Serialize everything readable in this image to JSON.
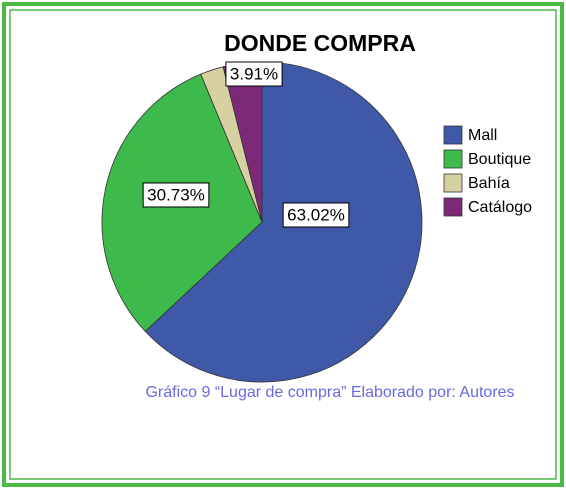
{
  "chart_data": {
    "type": "pie",
    "title": "DONDE COMPRA",
    "categories": [
      "Mall",
      "Boutique",
      "Bahía",
      "Catálogo"
    ],
    "values": [
      63.02,
      30.73,
      2.34,
      3.91
    ],
    "value_labels": [
      "63.02%",
      "30.73%",
      null,
      "3.91%"
    ],
    "colors": [
      "#3f59a8",
      "#3dba4b",
      "#d7d1a1",
      "#7c2a78"
    ],
    "legend": "right",
    "caption": "Gráfico 9 “Lugar de compra” Elaborado  por: Autores"
  }
}
